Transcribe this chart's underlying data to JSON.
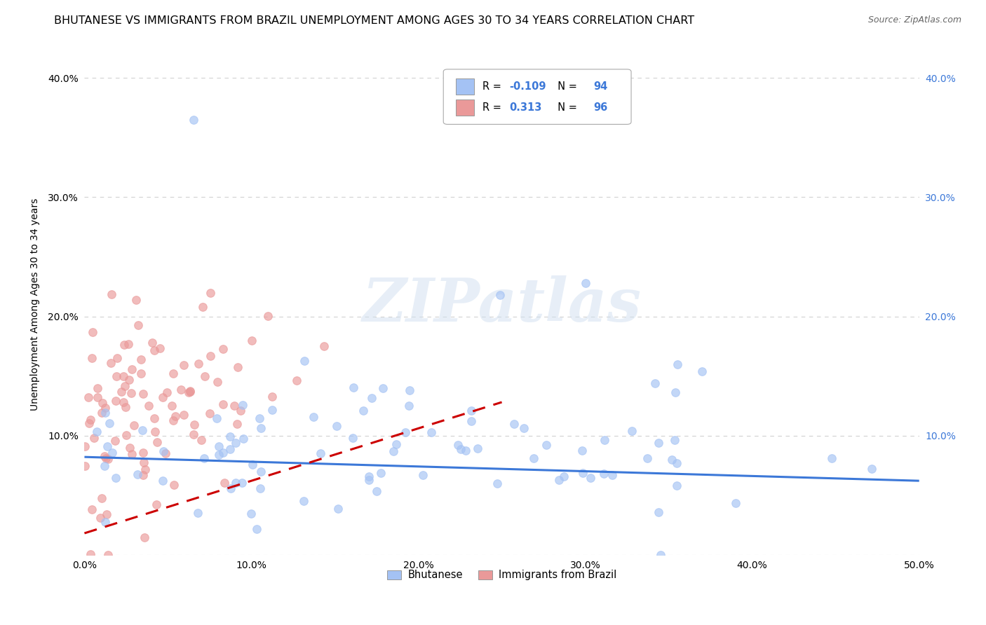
{
  "title": "BHUTANESE VS IMMIGRANTS FROM BRAZIL UNEMPLOYMENT AMONG AGES 30 TO 34 YEARS CORRELATION CHART",
  "source": "Source: ZipAtlas.com",
  "ylabel": "Unemployment Among Ages 30 to 34 years",
  "xlim": [
    0.0,
    0.5
  ],
  "ylim": [
    0.0,
    0.42
  ],
  "xticks": [
    0.0,
    0.1,
    0.2,
    0.3,
    0.4,
    0.5
  ],
  "xticklabels": [
    "0.0%",
    "10.0%",
    "20.0%",
    "30.0%",
    "40.0%",
    "50.0%"
  ],
  "yticks": [
    0.0,
    0.1,
    0.2,
    0.3,
    0.4
  ],
  "yticklabels_left": [
    "",
    "10.0%",
    "20.0%",
    "30.0%",
    "40.0%"
  ],
  "yticklabels_right": [
    "",
    "10.0%",
    "20.0%",
    "30.0%",
    "40.0%"
  ],
  "blue_color": "#a4c2f4",
  "pink_color": "#ea9999",
  "blue_line_color": "#3c78d8",
  "pink_line_color": "#cc0000",
  "legend_blue_label": "Bhutanese",
  "legend_pink_label": "Immigrants from Brazil",
  "R_blue": -0.109,
  "N_blue": 94,
  "R_pink": 0.313,
  "N_pink": 96,
  "watermark_text": "ZIPatlas",
  "background_color": "#ffffff",
  "grid_color": "#cccccc",
  "title_fontsize": 11.5,
  "axis_label_fontsize": 10,
  "tick_fontsize": 10,
  "blue_line_start_y": 0.082,
  "blue_line_end_y": 0.062,
  "pink_line_start_y": 0.018,
  "pink_line_end_y": 0.128,
  "pink_line_end_x": 0.25,
  "seed_blue": 7,
  "seed_pink": 13
}
